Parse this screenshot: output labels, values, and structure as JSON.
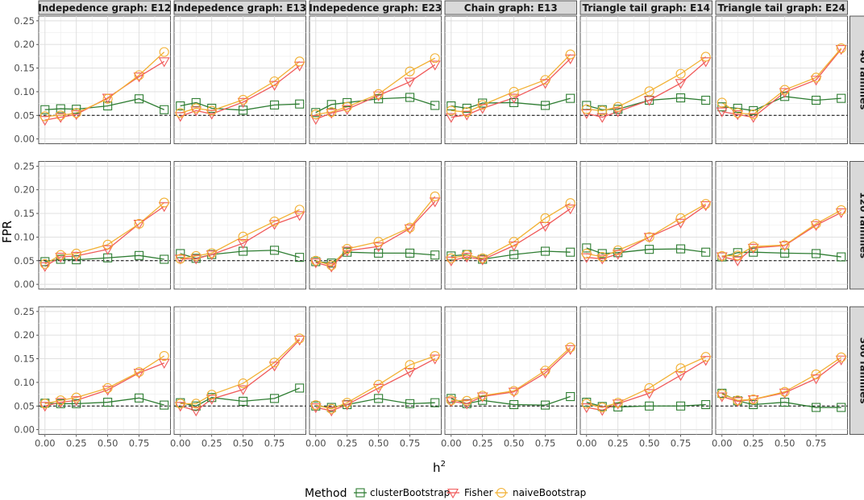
{
  "chart_data": {
    "type": "line",
    "ylabel": "FPR",
    "xlabel": "h",
    "xlabel_superscript": "2",
    "x": [
      0.0,
      0.125,
      0.25,
      0.5,
      0.75,
      0.95
    ],
    "xticks": [
      "0.00",
      "0.25",
      "0.50",
      "0.75"
    ],
    "xtick_values": [
      0.0,
      0.25,
      0.5,
      0.75
    ],
    "yticks": [
      "0.00",
      "0.05",
      "0.10",
      "0.15",
      "0.20",
      "0.25"
    ],
    "ytick_values": [
      0.0,
      0.05,
      0.1,
      0.15,
      0.2,
      0.25
    ],
    "xlim": [
      -0.05,
      1.0
    ],
    "ylim": [
      -0.01,
      0.26
    ],
    "reference_line": 0.05,
    "grid": true,
    "columns": [
      "Indepedence graph: E12",
      "Indepedence graph: E13",
      "Indepedence graph: E23",
      "Chain graph: E13",
      "Triangle tail graph: E14",
      "Triangle tail graph: E24"
    ],
    "rows": [
      "40 families",
      "120 families",
      "360 families"
    ],
    "legend": {
      "title": "Method",
      "position": "bottom",
      "entries": [
        {
          "name": "clusterBootstrap",
          "color": "#2e7d32",
          "shape": "square"
        },
        {
          "name": "Fisher",
          "color": "#f05a5a",
          "shape": "triangle-down"
        },
        {
          "name": "naiveBootstrap",
          "color": "#f2b134",
          "shape": "circle"
        }
      ]
    },
    "panels": [
      [
        {
          "clusterBootstrap": [
            0.062,
            0.064,
            0.063,
            0.07,
            0.085,
            0.062
          ],
          "Fisher": [
            0.04,
            0.046,
            0.052,
            0.087,
            0.132,
            0.164
          ],
          "naiveBootstrap": [
            0.048,
            0.05,
            0.055,
            0.085,
            0.135,
            0.184
          ]
        },
        {
          "clusterBootstrap": [
            0.07,
            0.077,
            0.065,
            0.061,
            0.072,
            0.074
          ],
          "Fisher": [
            0.048,
            0.06,
            0.053,
            0.078,
            0.114,
            0.155
          ],
          "naiveBootstrap": [
            0.055,
            0.065,
            0.06,
            0.083,
            0.122,
            0.164
          ]
        },
        {
          "clusterBootstrap": [
            0.056,
            0.073,
            0.077,
            0.085,
            0.088,
            0.071
          ],
          "Fisher": [
            0.042,
            0.055,
            0.063,
            0.092,
            0.121,
            0.157
          ],
          "naiveBootstrap": [
            0.052,
            0.057,
            0.068,
            0.095,
            0.143,
            0.171
          ]
        },
        {
          "clusterBootstrap": [
            0.07,
            0.065,
            0.076,
            0.077,
            0.071,
            0.086
          ],
          "Fisher": [
            0.046,
            0.051,
            0.065,
            0.087,
            0.118,
            0.17
          ],
          "naiveBootstrap": [
            0.06,
            0.057,
            0.072,
            0.1,
            0.125,
            0.179
          ]
        },
        {
          "clusterBootstrap": [
            0.071,
            0.062,
            0.063,
            0.082,
            0.087,
            0.082
          ],
          "Fisher": [
            0.054,
            0.046,
            0.058,
            0.082,
            0.118,
            0.164
          ],
          "naiveBootstrap": [
            0.063,
            0.06,
            0.068,
            0.101,
            0.138,
            0.174
          ]
        },
        {
          "clusterBootstrap": [
            0.068,
            0.065,
            0.06,
            0.09,
            0.082,
            0.086
          ],
          "Fisher": [
            0.058,
            0.052,
            0.046,
            0.099,
            0.125,
            0.19
          ],
          "naiveBootstrap": [
            0.077,
            0.055,
            0.052,
            0.104,
            0.13,
            0.192
          ]
        }
      ],
      [
        {
          "clusterBootstrap": [
            0.048,
            0.053,
            0.052,
            0.056,
            0.061,
            0.053
          ],
          "Fisher": [
            0.038,
            0.058,
            0.06,
            0.074,
            0.128,
            0.165
          ],
          "naiveBootstrap": [
            0.043,
            0.062,
            0.065,
            0.084,
            0.128,
            0.173
          ]
        },
        {
          "clusterBootstrap": [
            0.065,
            0.055,
            0.063,
            0.07,
            0.072,
            0.057
          ],
          "Fisher": [
            0.054,
            0.054,
            0.063,
            0.087,
            0.127,
            0.146
          ],
          "naiveBootstrap": [
            0.054,
            0.06,
            0.066,
            0.101,
            0.133,
            0.158
          ]
        },
        {
          "clusterBootstrap": [
            0.048,
            0.045,
            0.068,
            0.066,
            0.066,
            0.062
          ],
          "Fisher": [
            0.046,
            0.037,
            0.071,
            0.08,
            0.118,
            0.175
          ],
          "naiveBootstrap": [
            0.05,
            0.04,
            0.075,
            0.09,
            0.12,
            0.186
          ]
        },
        {
          "clusterBootstrap": [
            0.06,
            0.063,
            0.053,
            0.063,
            0.07,
            0.068
          ],
          "Fisher": [
            0.05,
            0.058,
            0.052,
            0.082,
            0.123,
            0.16
          ],
          "naiveBootstrap": [
            0.055,
            0.062,
            0.055,
            0.09,
            0.14,
            0.172
          ]
        },
        {
          "clusterBootstrap": [
            0.077,
            0.065,
            0.067,
            0.074,
            0.075,
            0.068
          ],
          "Fisher": [
            0.057,
            0.054,
            0.064,
            0.1,
            0.13,
            0.167
          ],
          "naiveBootstrap": [
            0.065,
            0.058,
            0.072,
            0.1,
            0.14,
            0.17
          ]
        },
        {
          "clusterBootstrap": [
            0.058,
            0.067,
            0.068,
            0.066,
            0.065,
            0.058
          ],
          "Fisher": [
            0.059,
            0.05,
            0.077,
            0.082,
            0.125,
            0.152
          ],
          "naiveBootstrap": [
            0.06,
            0.061,
            0.08,
            0.083,
            0.128,
            0.157
          ]
        }
      ],
      [
        {
          "clusterBootstrap": [
            0.056,
            0.055,
            0.055,
            0.058,
            0.067,
            0.052
          ],
          "Fisher": [
            0.05,
            0.058,
            0.062,
            0.084,
            0.12,
            0.141
          ],
          "naiveBootstrap": [
            0.055,
            0.062,
            0.068,
            0.088,
            0.122,
            0.156
          ]
        },
        {
          "clusterBootstrap": [
            0.057,
            0.05,
            0.068,
            0.06,
            0.066,
            0.088
          ],
          "Fisher": [
            0.05,
            0.04,
            0.065,
            0.085,
            0.135,
            0.19
          ],
          "naiveBootstrap": [
            0.055,
            0.055,
            0.074,
            0.098,
            0.142,
            0.193
          ]
        },
        {
          "clusterBootstrap": [
            0.05,
            0.047,
            0.053,
            0.066,
            0.055,
            0.057
          ],
          "Fisher": [
            0.047,
            0.04,
            0.053,
            0.088,
            0.122,
            0.15
          ],
          "naiveBootstrap": [
            0.052,
            0.044,
            0.057,
            0.095,
            0.137,
            0.156
          ]
        },
        {
          "clusterBootstrap": [
            0.066,
            0.055,
            0.062,
            0.053,
            0.052,
            0.07
          ],
          "Fisher": [
            0.06,
            0.055,
            0.07,
            0.08,
            0.12,
            0.17
          ],
          "naiveBootstrap": [
            0.062,
            0.061,
            0.072,
            0.082,
            0.125,
            0.174
          ]
        },
        {
          "clusterBootstrap": [
            0.058,
            0.049,
            0.048,
            0.05,
            0.05,
            0.053
          ],
          "Fisher": [
            0.047,
            0.041,
            0.055,
            0.077,
            0.115,
            0.147
          ],
          "naiveBootstrap": [
            0.055,
            0.047,
            0.057,
            0.088,
            0.13,
            0.154
          ]
        },
        {
          "clusterBootstrap": [
            0.077,
            0.061,
            0.053,
            0.058,
            0.047,
            0.047
          ],
          "Fisher": [
            0.07,
            0.06,
            0.064,
            0.078,
            0.108,
            0.148
          ],
          "naiveBootstrap": [
            0.075,
            0.062,
            0.064,
            0.08,
            0.117,
            0.153
          ]
        }
      ]
    ]
  }
}
